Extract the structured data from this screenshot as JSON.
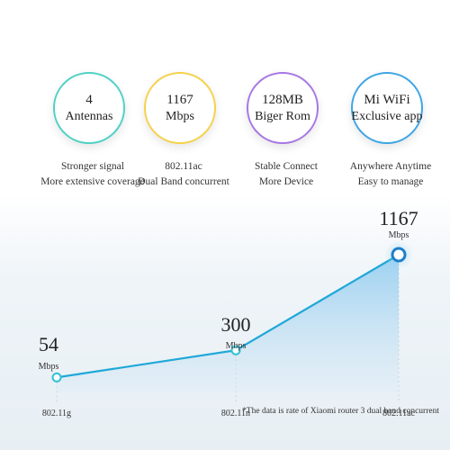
{
  "features": [
    {
      "line1": "4",
      "line2": "Antennas",
      "desc1": "Stronger signal",
      "desc2": "More extensive coverage",
      "color": "#4fd1c5"
    },
    {
      "line1": "1167",
      "line2": "Mbps",
      "desc1": "802.11ac",
      "desc2": "Dual Band concurrent",
      "color": "#f5d24b"
    },
    {
      "line1": "128MB",
      "line2": "Biger Rom",
      "desc1": "Stable Connect",
      "desc2": "More Device",
      "color": "#a777e3"
    },
    {
      "line1": "Mi WiFi",
      "line2": "Exclusive app",
      "desc1": "Anywhere Anytime",
      "desc2": "Easy to manage",
      "color": "#3da5e6"
    }
  ],
  "chart_data": {
    "type": "area",
    "categories": [
      "802.11g",
      "802.11n",
      "802.11ac"
    ],
    "values": [
      54,
      300,
      1167
    ],
    "unit": "Mbps",
    "value_labels": [
      "54",
      "300",
      "1167"
    ],
    "line_color": "#1fa8d8",
    "marker_fill": "#ffffff"
  },
  "footnote": "*The data is rate of Xiaomi router 3 dual band concurrent"
}
